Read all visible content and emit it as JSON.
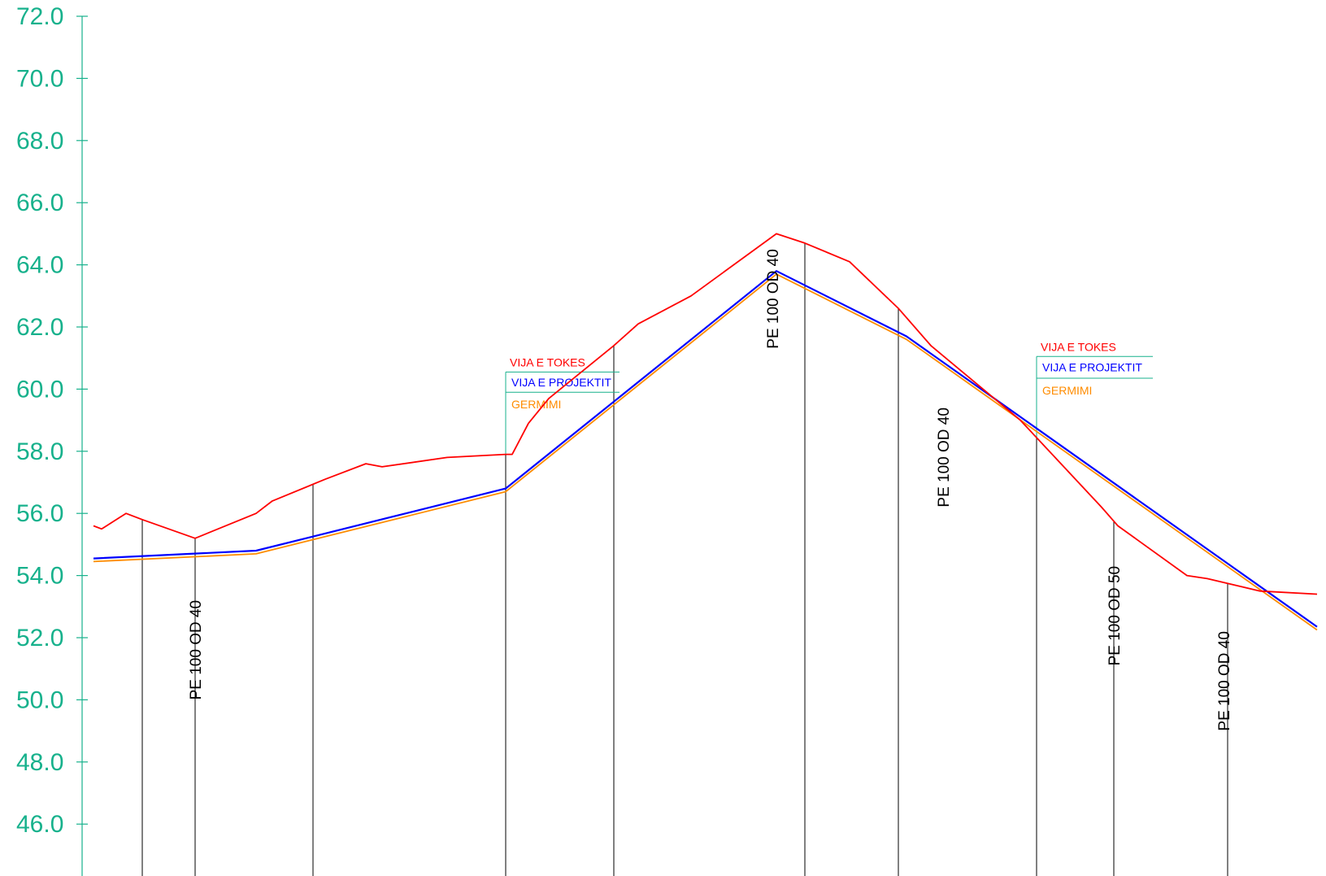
{
  "colors": {
    "axis": "#17b18c",
    "ground": "#ff0000",
    "project": "#0000ff",
    "excavation": "#ff8c00",
    "station": "#000000"
  },
  "chart_data": {
    "type": "line",
    "title": "",
    "xlabel": "",
    "ylabel": "",
    "ylim": [
      44.0,
      72.0
    ],
    "grid": false,
    "yticks": [
      "72.0",
      "70.0",
      "68.0",
      "66.0",
      "64.0",
      "62.0",
      "60.0",
      "58.0",
      "56.0",
      "54.0",
      "52.0",
      "50.0",
      "48.0",
      "46.0"
    ],
    "series": [
      {
        "key": "ground",
        "x": [
          0,
          10,
          40,
          60,
          125,
          200,
          220,
          285,
          335,
          355,
          435,
          507,
          515,
          535,
          560,
          640,
          670,
          735,
          840,
          875,
          930,
          990,
          1030,
          1140,
          1240,
          1260,
          1345,
          1370,
          1435,
          1505
        ],
        "y": [
          55.6,
          55.5,
          56.0,
          55.8,
          55.2,
          56.0,
          56.4,
          57.1,
          57.6,
          57.5,
          57.8,
          57.9,
          57.9,
          58.9,
          59.7,
          61.4,
          62.1,
          63.0,
          65.0,
          64.7,
          64.1,
          62.6,
          61.4,
          59.0,
          56.2,
          55.6,
          54.0,
          53.9,
          53.5,
          53.4
        ]
      },
      {
        "key": "project",
        "x": [
          0,
          200,
          507,
          840,
          1000,
          1505
        ],
        "y": [
          54.55,
          54.8,
          56.8,
          63.8,
          61.7,
          52.35
        ]
      },
      {
        "key": "excavation",
        "x": [
          0,
          200,
          507,
          840,
          1000,
          1505
        ],
        "y": [
          54.45,
          54.7,
          56.7,
          63.7,
          61.6,
          52.25
        ]
      }
    ],
    "stations": [
      60,
      125,
      270,
      507,
      640,
      875,
      990,
      1160,
      1255,
      1395
    ],
    "pipe_labels": [
      {
        "text": "PE 100 OD 40",
        "x": 125,
        "y": 50.0
      },
      {
        "text": "PE 100 OD 40",
        "x": 835,
        "y": 61.3
      },
      {
        "text": "PE 100 OD 40",
        "x": 1045,
        "y": 56.2
      },
      {
        "text": "PE 100 OD 50",
        "x": 1255,
        "y": 51.1
      },
      {
        "text": "PE 100 OD 40",
        "x": 1390,
        "y": 49.0
      }
    ],
    "legend_blocks": [
      {
        "x": 507,
        "y_top": 60.55,
        "y_mid": 59.9,
        "width": 140
      },
      {
        "x": 1160,
        "y_top": 61.05,
        "y_mid": 60.35,
        "width": 143
      }
    ]
  },
  "legend": {
    "ground_label": "VIJA E TOKES",
    "project_label": "VIJA E PROJEKTIT",
    "excavation_label": "GERMIMI"
  }
}
